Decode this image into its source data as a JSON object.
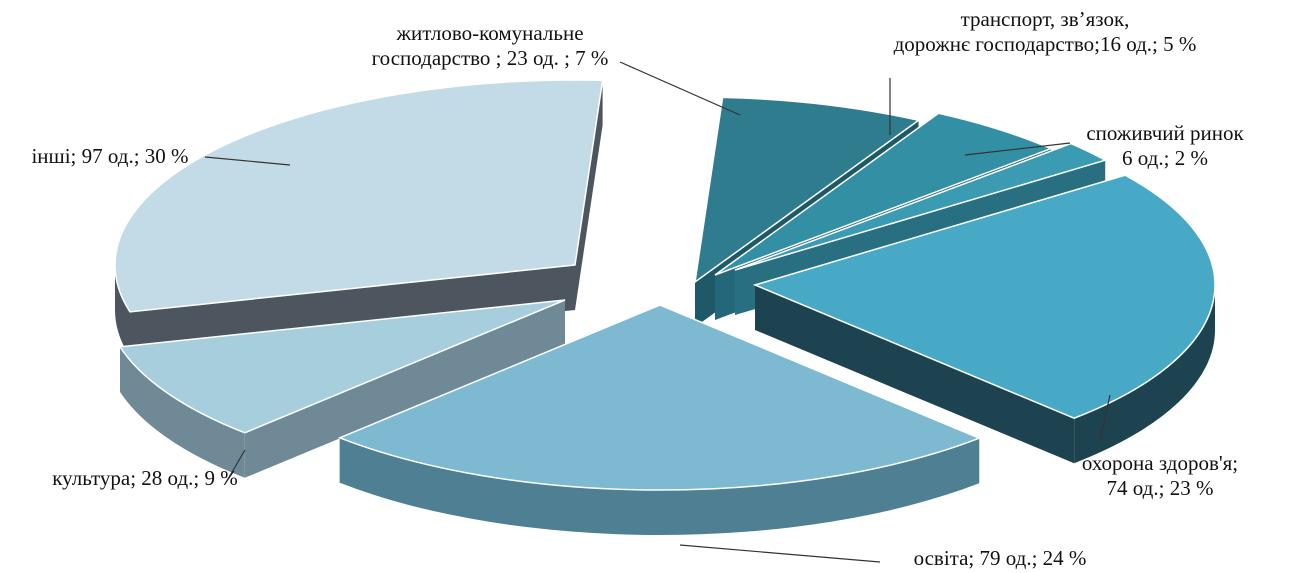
{
  "chart_data": {
    "type": "pie",
    "style": "exploded-3d",
    "slices": [
      {
        "id": "zhytlovo",
        "label_lines": [
          "житлово-комунальне",
          "господарство ; 23 од. ; 7 %"
        ],
        "count": 23,
        "percent": 7,
        "color_top": "#2f7c8e",
        "color_side": "#1f5866"
      },
      {
        "id": "transport",
        "label_lines": [
          "транспорт, зв’язок,",
          "дорожнє господарство;16 од.; 5 %"
        ],
        "count": 16,
        "percent": 5,
        "color_top": "#338fa4",
        "color_side": "#24677a"
      },
      {
        "id": "rynok",
        "label_lines": [
          "споживчий ринок",
          "6 од.; 2 %"
        ],
        "count": 6,
        "percent": 2,
        "color_top": "#3a9bb2",
        "color_side": "#296f82"
      },
      {
        "id": "zdorov",
        "label_lines": [
          "охорона здоров'я;",
          "74 од.; 23 %"
        ],
        "count": 74,
        "percent": 23,
        "color_top": "#48a9c6",
        "color_side": "#1d4350"
      },
      {
        "id": "osvita",
        "label_lines": [
          "освіта; 79 од.; 24 %"
        ],
        "count": 79,
        "percent": 24,
        "color_top": "#7db9d1",
        "color_side": "#4f7f92"
      },
      {
        "id": "kultura",
        "label_lines": [
          "культура;  28 од.; 9 %"
        ],
        "count": 28,
        "percent": 9,
        "color_top": "#a6cedd",
        "color_side": "#6f8a96"
      },
      {
        "id": "inshi",
        "label_lines": [
          "інші; 97 од.; 30 %"
        ],
        "count": 97,
        "percent": 30,
        "color_top": "#c3dbe6",
        "color_side": "#4d565e"
      }
    ]
  }
}
